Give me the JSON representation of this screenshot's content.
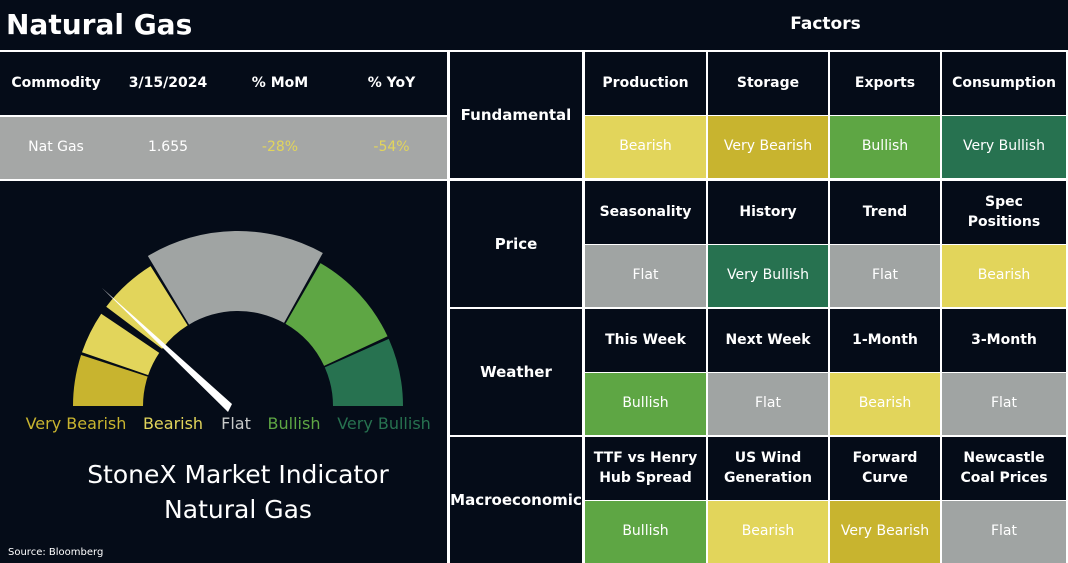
{
  "header": {
    "title": "Natural Gas",
    "factors": "Factors"
  },
  "table": {
    "columns": [
      "Commodity",
      "3/15/2024",
      "% MoM",
      "% YoY"
    ],
    "rows": [
      [
        "Nat Gas",
        "1.655",
        "-28%",
        "-54%"
      ]
    ]
  },
  "gauge": {
    "labels": [
      "Very Bearish",
      "Bearish",
      "Flat",
      "Bullish",
      "Very Bullish"
    ],
    "title": [
      "StoneX Market Indicator",
      "Natural Gas"
    ]
  },
  "source": "Source: Bloomberg",
  "rating_colors": {
    "Very Bearish": "#c8b42f",
    "Bearish": "#e2d55b",
    "Flat": "#a0a4a3",
    "Bullish": "#5ea644",
    "Very Bullish": "#277250"
  },
  "factors": [
    {
      "name": "Fundamental",
      "items": [
        {
          "label": "Production",
          "rating": "Bearish"
        },
        {
          "label": "Storage",
          "rating": "Very Bearish"
        },
        {
          "label": "Exports",
          "rating": "Bullish"
        },
        {
          "label": "Consumption",
          "rating": "Very Bullish"
        }
      ]
    },
    {
      "name": "Price",
      "items": [
        {
          "label": "Seasonality",
          "rating": "Flat"
        },
        {
          "label": "History",
          "rating": "Very Bullish"
        },
        {
          "label": "Trend",
          "rating": "Flat"
        },
        {
          "label": "Spec Positions",
          "rating": "Bearish"
        }
      ]
    },
    {
      "name": "Weather",
      "items": [
        {
          "label": "This Week",
          "rating": "Bullish"
        },
        {
          "label": "Next Week",
          "rating": "Flat"
        },
        {
          "label": "1-Month",
          "rating": "Bearish"
        },
        {
          "label": "3-Month",
          "rating": "Flat"
        }
      ]
    },
    {
      "name": "Macroeconomic",
      "items": [
        {
          "label": "TTF vs Henry Hub Spread",
          "rating": "Bullish"
        },
        {
          "label": "US Wind Generation",
          "rating": "Bearish"
        },
        {
          "label": "Forward Curve",
          "rating": "Very Bearish"
        },
        {
          "label": "Newcastle Coal Prices",
          "rating": "Flat"
        }
      ]
    }
  ]
}
